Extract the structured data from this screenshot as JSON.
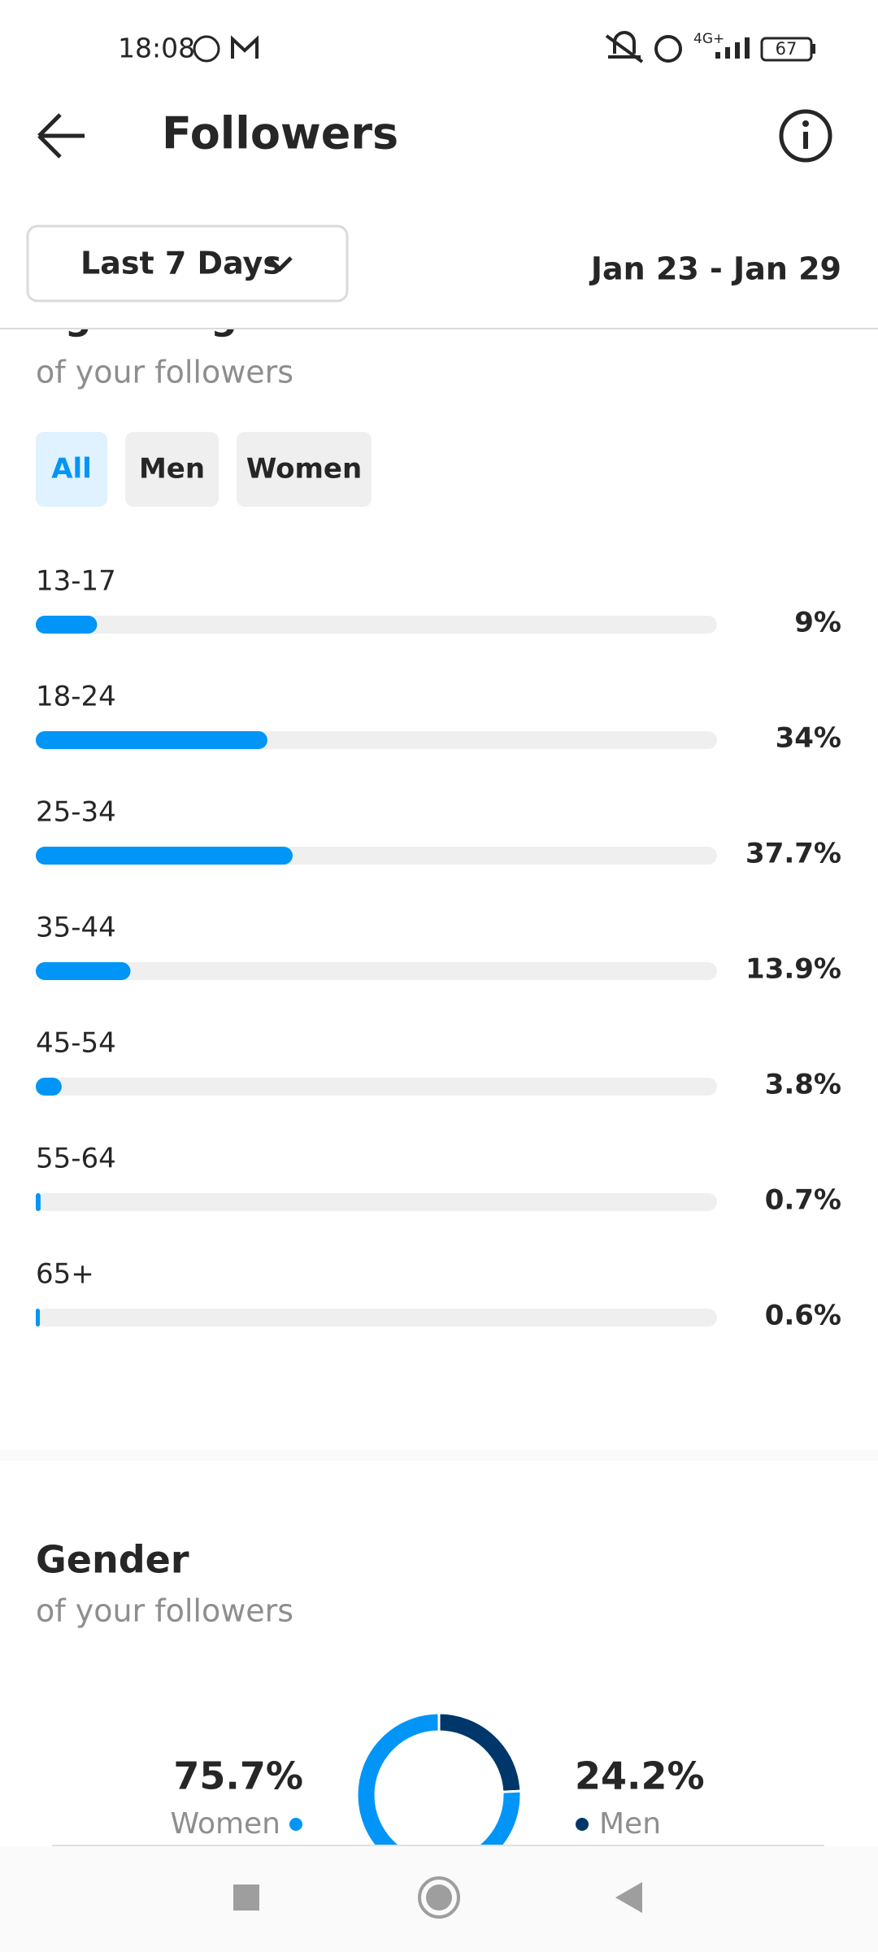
{
  "status": {
    "time": "18:08",
    "network": "4G+",
    "battery": "67"
  },
  "header": {
    "title": "Followers"
  },
  "filter": {
    "period": "Last 7 Days",
    "date_range": "Jan 23 - Jan 29"
  },
  "age_range": {
    "title": "Age Range",
    "subtitle": "of your followers",
    "tabs": [
      "All",
      "Men",
      "Women"
    ],
    "chart_data": {
      "type": "bar",
      "categories": [
        "13-17",
        "18-24",
        "25-34",
        "35-44",
        "45-54",
        "55-64",
        "65+"
      ],
      "values": [
        9,
        34,
        37.7,
        13.9,
        3.8,
        0.7,
        0.6
      ],
      "value_labels": [
        "9%",
        "34%",
        "37.7%",
        "13.9%",
        "3.8%",
        "0.7%",
        "0.6%"
      ],
      "xlim": [
        0,
        100
      ],
      "color": "#0095f6"
    }
  },
  "gender": {
    "title": "Gender",
    "subtitle": "of your followers",
    "chart_data": {
      "type": "donut",
      "categories": [
        "Women",
        "Men"
      ],
      "values": [
        75.7,
        24.2
      ],
      "value_labels": [
        "75.7%",
        "24.2%"
      ],
      "colors": [
        "#0095f6",
        "#00376b"
      ]
    }
  }
}
